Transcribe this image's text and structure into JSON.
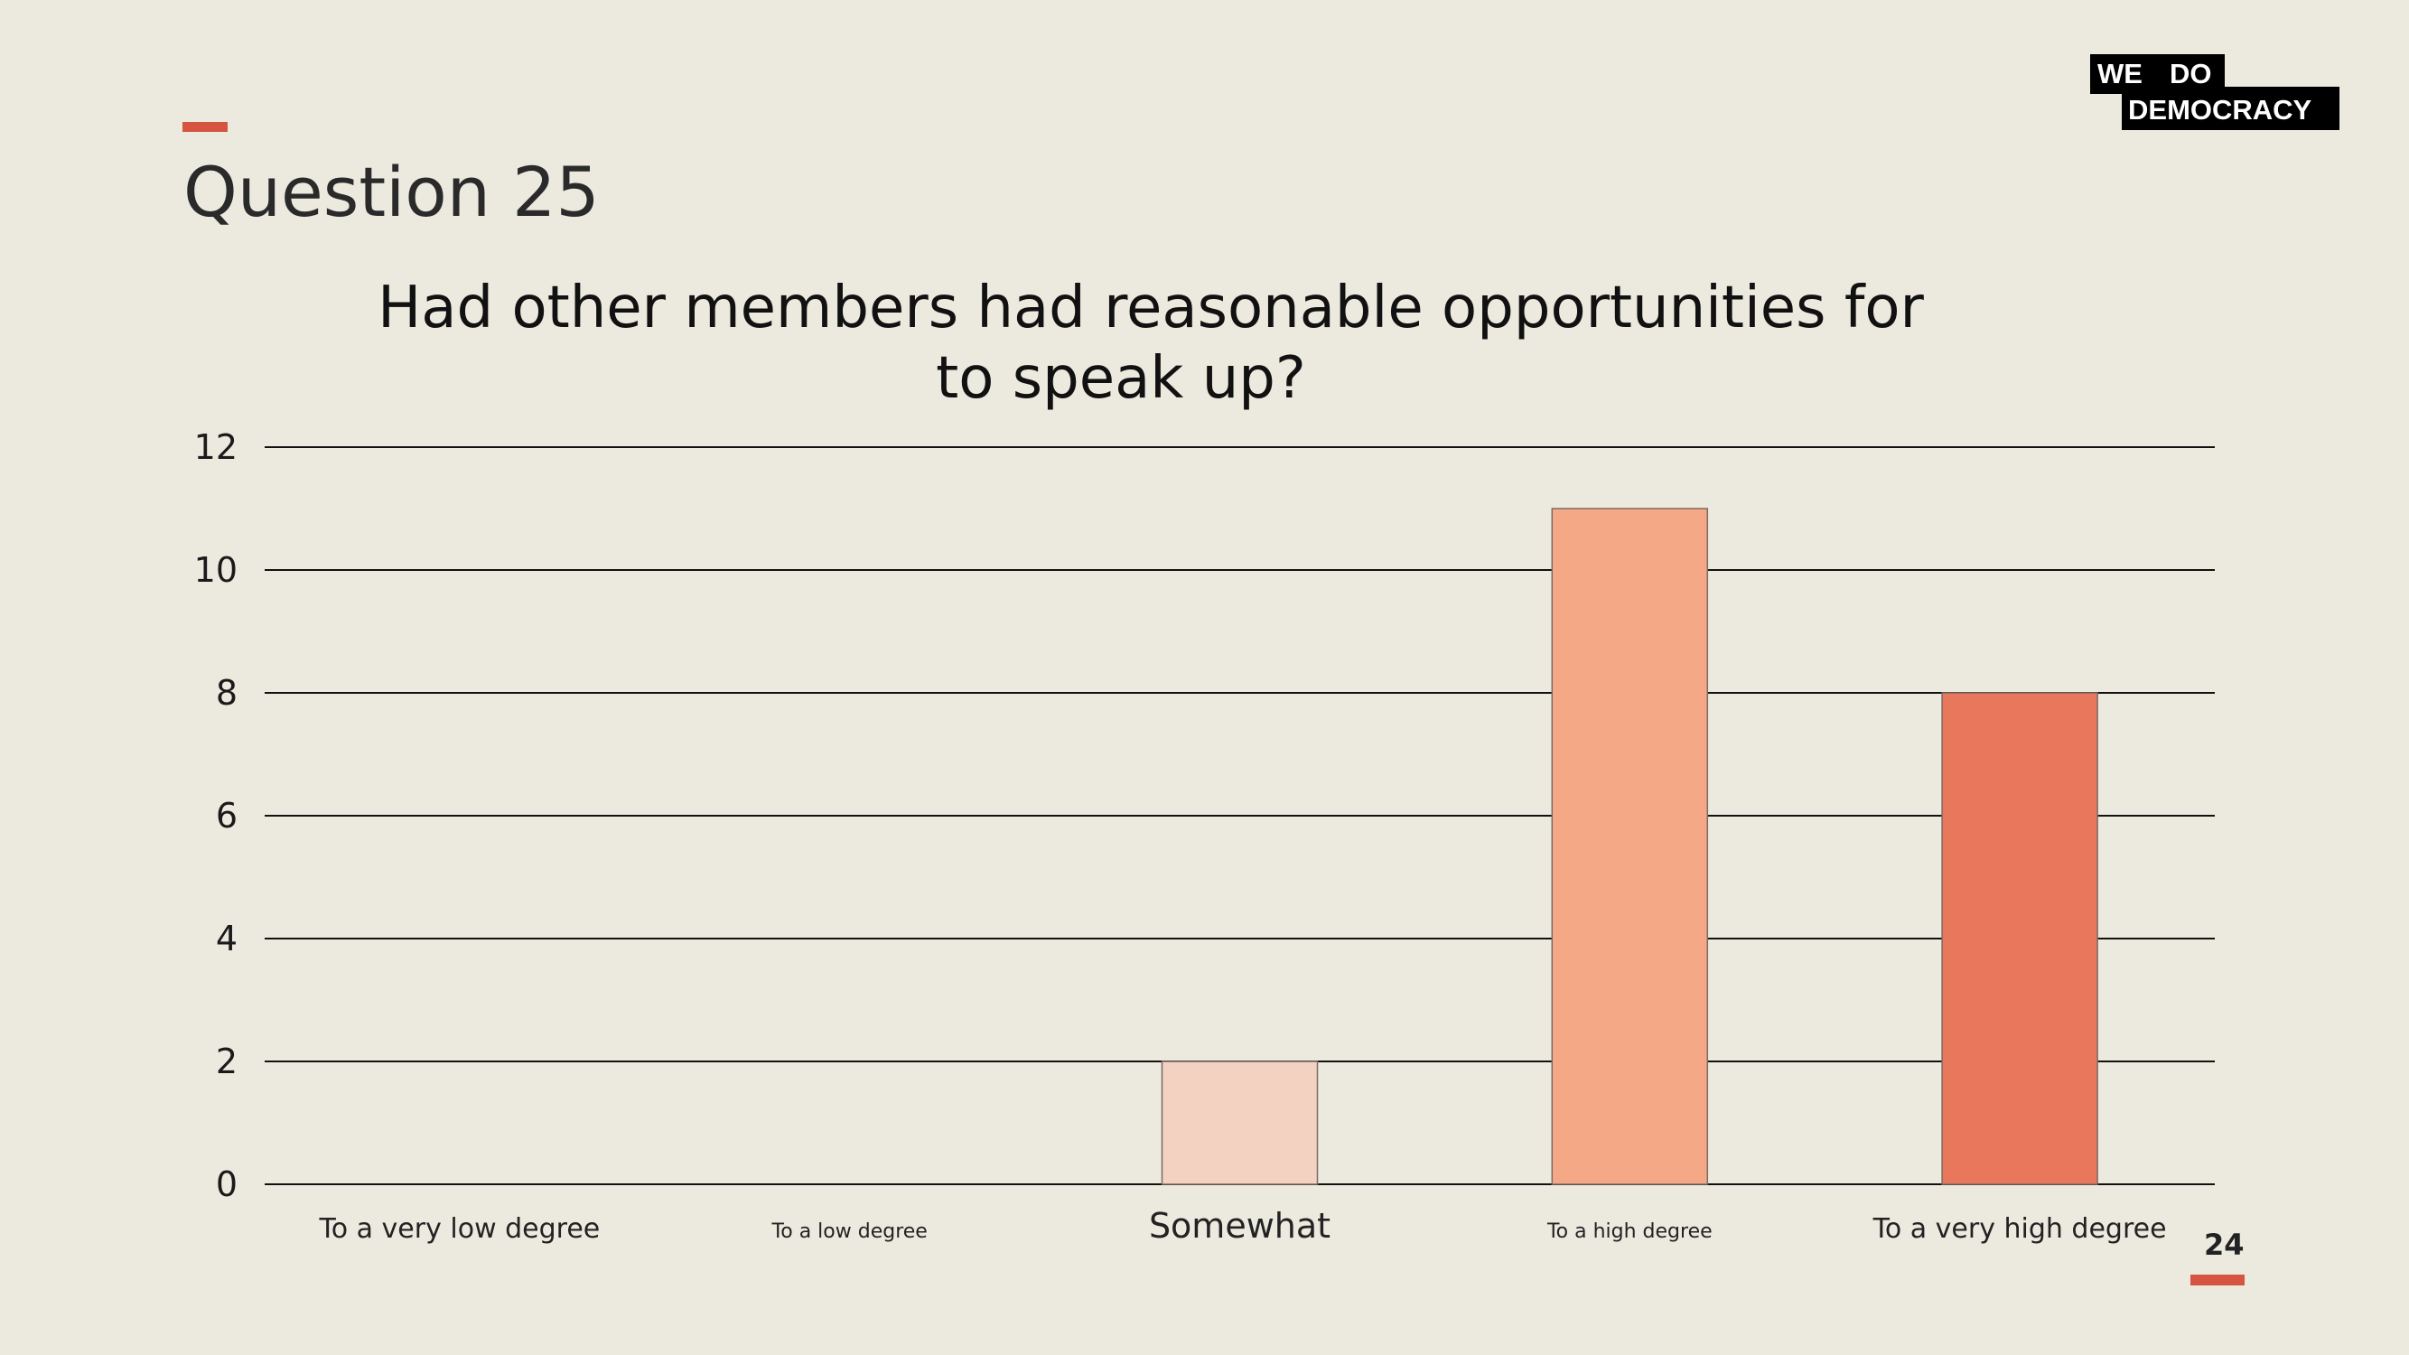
{
  "slide": {
    "title": "Question 25",
    "page_number": "24"
  },
  "logo": {
    "line1_left": "WE",
    "line1_right": "DO",
    "line2": "DEMOCRACY"
  },
  "colors": {
    "background": "#ECE9DF",
    "accent": "#D65540",
    "bar_somewhat": "#F4D2C1",
    "bar_high": "#F5A886",
    "bar_very_high": "#E8775C"
  },
  "chart_data": {
    "type": "bar",
    "title_lines": [
      "Had other members had reasonable opportunities for",
      "to speak up?"
    ],
    "categories": [
      "To a very low degree",
      "To a low degree",
      "Somewhat",
      "To a high degree",
      "To a very high degree"
    ],
    "values": [
      0,
      0,
      2,
      11,
      8
    ],
    "bar_colors": [
      "#F4D2C1",
      "#F4D2C1",
      "#F4D2C1",
      "#F5A886",
      "#E8775C"
    ],
    "ylim": [
      0,
      12
    ],
    "yticks": [
      0,
      2,
      4,
      6,
      8,
      10,
      12
    ],
    "grid": true,
    "legend": "none",
    "xlabel": "",
    "ylabel": ""
  }
}
